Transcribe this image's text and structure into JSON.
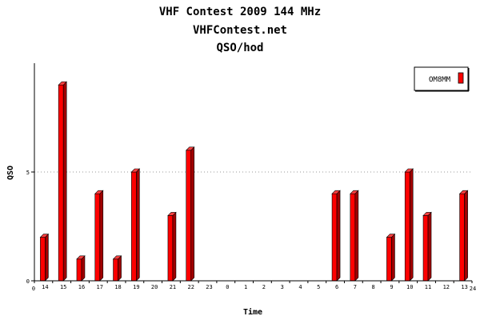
{
  "chart_data": {
    "type": "bar",
    "title": "VHF Contest 2009 144 MHz",
    "subtitle": "VHFContest.net",
    "subtitle2": "QSO/hod",
    "xlabel": "Time",
    "ylabel": "QSO",
    "x_start_tick": "0",
    "x_end_tick": "24",
    "categories": [
      "14",
      "15",
      "16",
      "17",
      "18",
      "19",
      "20",
      "21",
      "22",
      "23",
      "0",
      "1",
      "2",
      "3",
      "4",
      "5",
      "6",
      "7",
      "8",
      "9",
      "10",
      "11",
      "12",
      "13"
    ],
    "y_ticks": [
      0,
      5
    ],
    "ylim": [
      0,
      10
    ],
    "grid": "horizontal dotted at 5",
    "legend_position": "top-right",
    "series": [
      {
        "name": "OM8MM",
        "color": "#ff0000",
        "values": [
          2,
          9,
          1,
          4,
          1,
          5,
          0,
          3,
          6,
          0,
          0,
          0,
          0,
          0,
          0,
          0,
          4,
          4,
          0,
          2,
          5,
          3,
          0,
          4
        ]
      }
    ]
  }
}
